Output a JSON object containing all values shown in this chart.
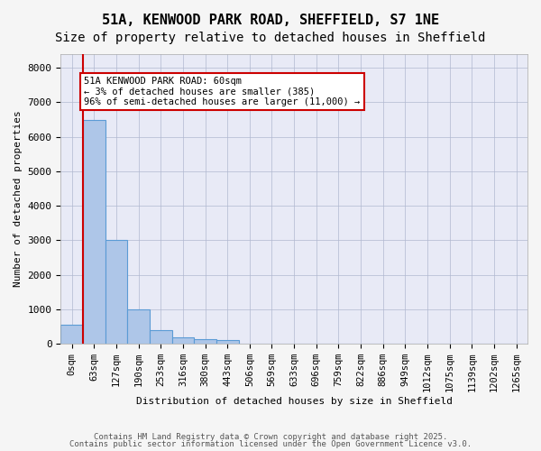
{
  "title1": "51A, KENWOOD PARK ROAD, SHEFFIELD, S7 1NE",
  "title2": "Size of property relative to detached houses in Sheffield",
  "xlabel": "Distribution of detached houses by size in Sheffield",
  "ylabel": "Number of detached properties",
  "bar_color": "#aec6e8",
  "bar_edge_color": "#5b9bd5",
  "grid_color": "#b0b8d0",
  "background_color": "#e8eaf6",
  "annotation_box_color": "#cc0000",
  "property_line_color": "#cc0000",
  "bin_labels": [
    "0sqm",
    "63sqm",
    "127sqm",
    "190sqm",
    "253sqm",
    "316sqm",
    "380sqm",
    "443sqm",
    "506sqm",
    "569sqm",
    "633sqm",
    "696sqm",
    "759sqm",
    "822sqm",
    "886sqm",
    "949sqm",
    "1012sqm",
    "1075sqm",
    "1139sqm",
    "1202sqm",
    "1265sqm"
  ],
  "bar_values": [
    550,
    6500,
    3000,
    1000,
    380,
    170,
    130,
    100,
    0,
    0,
    0,
    0,
    0,
    0,
    0,
    0,
    0,
    0,
    0,
    0,
    0
  ],
  "annotation_text": "51A KENWOOD PARK ROAD: 60sqm\n← 3% of detached houses are smaller (385)\n96% of semi-detached houses are larger (11,000) →",
  "ylim": [
    0,
    8400
  ],
  "yticks": [
    0,
    1000,
    2000,
    3000,
    4000,
    5000,
    6000,
    7000,
    8000
  ],
  "footer1": "Contains HM Land Registry data © Crown copyright and database right 2025.",
  "footer2": "Contains public sector information licensed under the Open Government Licence v3.0.",
  "title_fontsize": 11,
  "subtitle_fontsize": 10,
  "axis_fontsize": 8,
  "tick_fontsize": 7.5,
  "footer_fontsize": 6.5
}
